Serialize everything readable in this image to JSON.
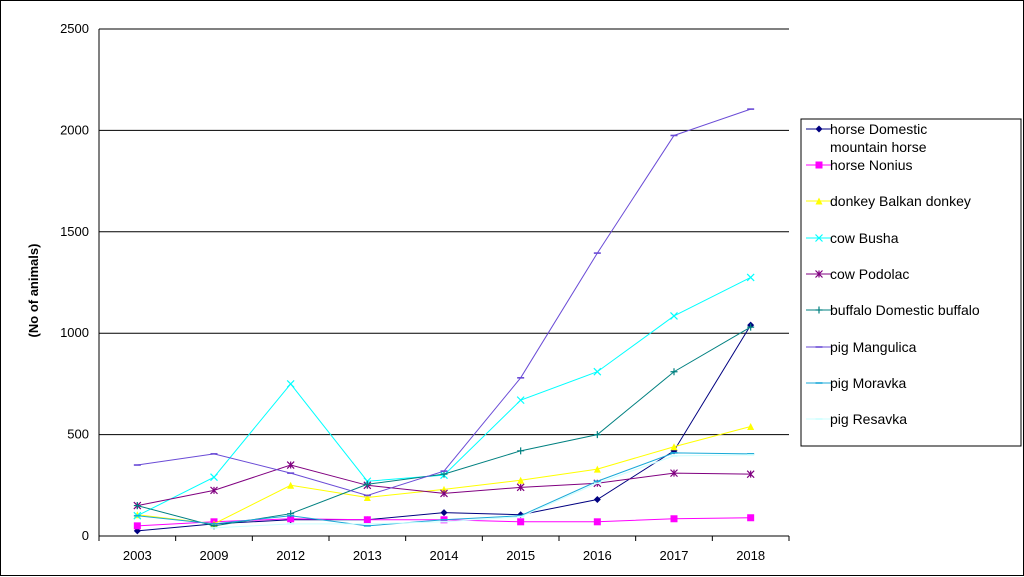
{
  "chart_data": {
    "type": "line",
    "title": "",
    "xlabel": "",
    "ylabel": "(No of animals)",
    "ylim": [
      0,
      2500
    ],
    "yticks": [
      0,
      500,
      1000,
      1500,
      2000,
      2500
    ],
    "grid": "horizontal",
    "legend_position": "right",
    "categories": [
      "2003",
      "2009",
      "2012",
      "2013",
      "2014",
      "2015",
      "2016",
      "2017",
      "2018"
    ],
    "series": [
      {
        "name": "horse Domestic mountain horse",
        "legend_lines": [
          "horse Domestic",
          "mountain horse"
        ],
        "color": "#000080",
        "marker": "diamond",
        "values": [
          25,
          60,
          80,
          80,
          115,
          105,
          180,
          420,
          1040
        ]
      },
      {
        "name": "horse Nonius",
        "legend_lines": [
          "horse Nonius"
        ],
        "color": "#ff00ff",
        "marker": "square",
        "values": [
          50,
          70,
          85,
          80,
          80,
          70,
          70,
          85,
          90
        ]
      },
      {
        "name": "donkey Balkan donkey",
        "legend_lines": [
          "donkey Balkan donkey"
        ],
        "color": "#ffff00",
        "marker": "triangle",
        "values": [
          105,
          60,
          250,
          190,
          230,
          275,
          330,
          440,
          540
        ]
      },
      {
        "name": "cow Busha",
        "legend_lines": [
          "cow Busha"
        ],
        "color": "#00ffff",
        "marker": "x",
        "values": [
          100,
          290,
          750,
          270,
          300,
          670,
          810,
          1085,
          1275
        ]
      },
      {
        "name": "cow Podolac",
        "legend_lines": [
          "cow Podolac"
        ],
        "color": "#800080",
        "marker": "star",
        "values": [
          150,
          225,
          350,
          250,
          210,
          240,
          260,
          310,
          305
        ]
      },
      {
        "name": "buffalo Domestic buffalo",
        "legend_lines": [
          "buffalo Domestic buffalo"
        ],
        "color": "#008080",
        "marker": "plus",
        "values": [
          150,
          50,
          110,
          255,
          305,
          420,
          500,
          810,
          1030
        ]
      },
      {
        "name": "pig Mangulica",
        "legend_lines": [
          "pig  Mangulica"
        ],
        "color": "#6a4bd6",
        "marker": "dash",
        "values": [
          350,
          405,
          310,
          200,
          320,
          780,
          1395,
          1975,
          2105
        ]
      },
      {
        "name": "pig Moravka",
        "legend_lines": [
          "pig  Moravka"
        ],
        "color": "#1aa9d8",
        "marker": "dash",
        "values": [
          100,
          60,
          100,
          50,
          80,
          100,
          270,
          410,
          405
        ]
      },
      {
        "name": "pig Resavka",
        "legend_lines": [
          "pig  Resavka"
        ],
        "color": "#ccffff",
        "marker": "dash",
        "values": [
          null,
          40,
          60,
          60,
          70,
          95,
          260,
          395,
          400
        ]
      }
    ]
  }
}
